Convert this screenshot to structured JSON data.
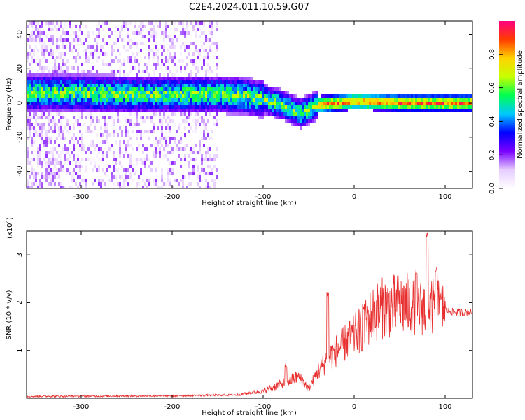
{
  "title": "C2E4.2024.011.10.59.G07",
  "chart_data": [
    {
      "type": "heatmap",
      "xlabel": "Height of straight line (km)",
      "ylabel": "Frequency (Hz)",
      "xlim": [
        -360,
        130
      ],
      "ylim": [
        -50,
        48
      ],
      "x_ticks": [
        -300,
        -200,
        -100,
        0,
        100
      ],
      "y_ticks": [
        -40,
        -20,
        0,
        20,
        40
      ],
      "colorbar": {
        "label": "Normalized spectral amplitude",
        "range": [
          0,
          1
        ],
        "ticks": [
          0.0,
          0.2,
          0.4,
          0.6,
          0.8
        ],
        "colormap": [
          "#ffffff",
          "#e6ccff",
          "#7a00ff",
          "#0000ff",
          "#00c8ff",
          "#00ff50",
          "#c8ff00",
          "#ffd200",
          "#ff3c00",
          "#ff0080"
        ]
      },
      "ridge": {
        "x": [
          -320,
          -250,
          -200,
          -150,
          -120,
          -100,
          -80,
          -60,
          -40,
          -20,
          0,
          50,
          100,
          130
        ],
        "y": [
          7,
          6,
          6,
          6,
          5,
          3,
          0,
          -5,
          0,
          1,
          2,
          1,
          1,
          1
        ]
      }
    },
    {
      "type": "line",
      "xlabel": "Height of straight line (km)",
      "ylabel": "SNR (10 * v/v)",
      "y_multiplier": "(x10",
      "y_multiplier_exp": "4",
      "y_multiplier_close": ")",
      "xlim": [
        -360,
        130
      ],
      "ylim": [
        0,
        3.5
      ],
      "x_ticks": [
        -300,
        -200,
        -100,
        0,
        100
      ],
      "y_ticks": [
        1,
        2,
        3
      ],
      "color": "#e83030",
      "envelope": {
        "x": [
          -360,
          -200,
          -130,
          -100,
          -80,
          -60,
          -50,
          -40,
          -30,
          -20,
          -10,
          0,
          10,
          20,
          30,
          40,
          50,
          60,
          70,
          80,
          90,
          100,
          110,
          130
        ],
        "y": [
          0.04,
          0.05,
          0.07,
          0.15,
          0.3,
          0.45,
          0.2,
          0.55,
          0.8,
          1.0,
          1.15,
          1.3,
          1.5,
          1.75,
          1.88,
          1.92,
          1.95,
          1.95,
          1.9,
          1.9,
          1.9,
          1.85,
          1.8,
          1.8
        ]
      },
      "peaks": [
        {
          "x": -75,
          "y": 0.78
        },
        {
          "x": -29,
          "y": 2.25
        },
        {
          "x": 10,
          "y": 2.0
        },
        {
          "x": 68,
          "y": 2.75
        },
        {
          "x": 80,
          "y": 3.5
        },
        {
          "x": 90,
          "y": 2.8
        },
        {
          "x": 95,
          "y": 2.2
        }
      ]
    }
  ]
}
